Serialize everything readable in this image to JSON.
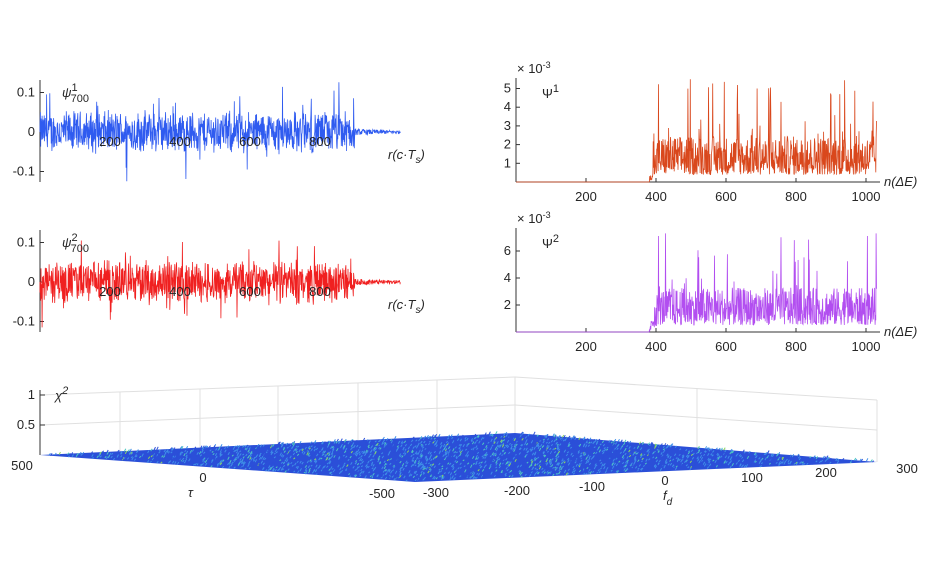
{
  "chart_data": [
    {
      "type": "line",
      "panel": "top-left",
      "label_base": "ψ",
      "label_sup": "1",
      "label_sub": "700",
      "xlabel": "r(c·T",
      "xlabel_sub": "s",
      "xlabel_end": ")",
      "xlim": [
        0,
        1030
      ],
      "ylim": [
        -0.13,
        0.13
      ],
      "xticks": [
        "200",
        "400",
        "600",
        "800"
      ],
      "xtick_values": [
        200,
        400,
        600,
        800
      ],
      "yticks": [
        "0.1",
        "0",
        "-0.1"
      ],
      "ytick_values": [
        0.1,
        0,
        -0.1
      ],
      "signal": "noise",
      "active_until": 900,
      "peak": 0.13,
      "color": "#2f5bf0"
    },
    {
      "type": "line",
      "panel": "middle-left",
      "label_base": "ψ",
      "label_sup": "2",
      "label_sub": "700",
      "xlabel": "r(c·T",
      "xlabel_sub": "s",
      "xlabel_end": ")",
      "xlim": [
        0,
        1030
      ],
      "ylim": [
        -0.13,
        0.13
      ],
      "xticks": [
        "200",
        "400",
        "600",
        "800"
      ],
      "xtick_values": [
        200,
        400,
        600,
        800
      ],
      "yticks": [
        "0.1",
        "0",
        "-0.1"
      ],
      "ytick_values": [
        0.1,
        0,
        -0.1
      ],
      "signal": "noise",
      "active_until": 900,
      "peak": 0.13,
      "color": "#f02020"
    },
    {
      "type": "line",
      "panel": "top-right",
      "label_base": "Ψ",
      "label_sup": "1",
      "exponent": "× 10",
      "exponent_sup": "-3",
      "xlabel": "n(ΔE)",
      "xlim": [
        0,
        1030
      ],
      "ylim": [
        0,
        5.5
      ],
      "xticks": [
        "200",
        "400",
        "600",
        "800",
        "1000"
      ],
      "xtick_values": [
        200,
        400,
        600,
        800,
        1000
      ],
      "yticks": [
        "5",
        "4",
        "3",
        "2",
        "1"
      ],
      "ytick_values": [
        5,
        4,
        3,
        2,
        1
      ],
      "signal": "noise",
      "onset": 380,
      "peak": 5.5,
      "color": "#d9471c"
    },
    {
      "type": "line",
      "panel": "middle-right",
      "label_base": "Ψ",
      "label_sup": "2",
      "exponent": "× 10",
      "exponent_sup": "-3",
      "xlabel": "n(ΔE)",
      "xlim": [
        0,
        1030
      ],
      "ylim": [
        0,
        7.3
      ],
      "xticks": [
        "200",
        "400",
        "600",
        "800",
        "1000"
      ],
      "xtick_values": [
        200,
        400,
        600,
        800,
        1000
      ],
      "yticks": [
        "6",
        "4",
        "2"
      ],
      "ytick_values": [
        6,
        4,
        2
      ],
      "signal": "noise",
      "onset": 380,
      "peak": 7.3,
      "color": "#b24ef0"
    },
    {
      "type": "surface",
      "panel": "bottom",
      "zlabel": "χ",
      "zlabel_sup": "2",
      "zticks": [
        "1",
        "0.5"
      ],
      "tau_label": "τ",
      "tau_ticks": [
        "500",
        "0",
        "-500"
      ],
      "fd_label": "f",
      "fd_label_sub": "d",
      "fd_ticks": [
        "-300",
        "-200",
        "-100",
        "0",
        "100",
        "200",
        "300"
      ],
      "zlim": [
        0,
        1
      ],
      "tau_range": [
        -500,
        500
      ],
      "fd_range": [
        -300,
        300
      ],
      "surface_level": "near zero noise floor",
      "colormap": [
        "#2b4fd8",
        "#3f8fe8",
        "#4fc8c0",
        "#8fd860"
      ]
    }
  ]
}
